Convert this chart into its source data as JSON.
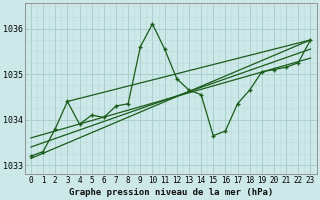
{
  "xlabel": "Graphe pression niveau de la mer (hPa)",
  "bg_color": "#cce8e8",
  "grid_major_color": "#aacfcf",
  "grid_minor_color": "#bbdada",
  "line_color": "#1a5c1a",
  "xlim": [
    -0.5,
    23.5
  ],
  "ylim": [
    1032.8,
    1036.55
  ],
  "yticks": [
    1033,
    1034,
    1035,
    1036
  ],
  "xticks": [
    0,
    1,
    2,
    3,
    4,
    5,
    6,
    7,
    8,
    9,
    10,
    11,
    12,
    13,
    14,
    15,
    16,
    17,
    18,
    19,
    20,
    21,
    22,
    23
  ],
  "series_x": [
    0,
    1,
    2,
    3,
    4,
    5,
    6,
    7,
    8,
    9,
    10,
    11,
    12,
    13,
    14,
    15,
    16,
    17,
    18,
    19,
    20,
    21,
    22,
    23
  ],
  "series_y": [
    1033.2,
    1033.3,
    1033.8,
    1034.4,
    1033.9,
    1034.1,
    1034.05,
    1034.3,
    1034.35,
    1035.6,
    1036.1,
    1035.55,
    1034.9,
    1034.65,
    1034.55,
    1033.65,
    1033.75,
    1034.35,
    1034.65,
    1035.05,
    1035.1,
    1035.15,
    1035.25,
    1035.75
  ],
  "trend_lines": [
    [
      [
        0,
        23
      ],
      [
        1033.15,
        1035.75
      ]
    ],
    [
      [
        0,
        23
      ],
      [
        1033.4,
        1035.55
      ]
    ],
    [
      [
        0,
        23
      ],
      [
        1033.6,
        1035.35
      ]
    ],
    [
      [
        3,
        23
      ],
      [
        1034.4,
        1035.75
      ]
    ]
  ],
  "xlabel_fontsize": 6.5,
  "tick_fontsize": 5.5
}
